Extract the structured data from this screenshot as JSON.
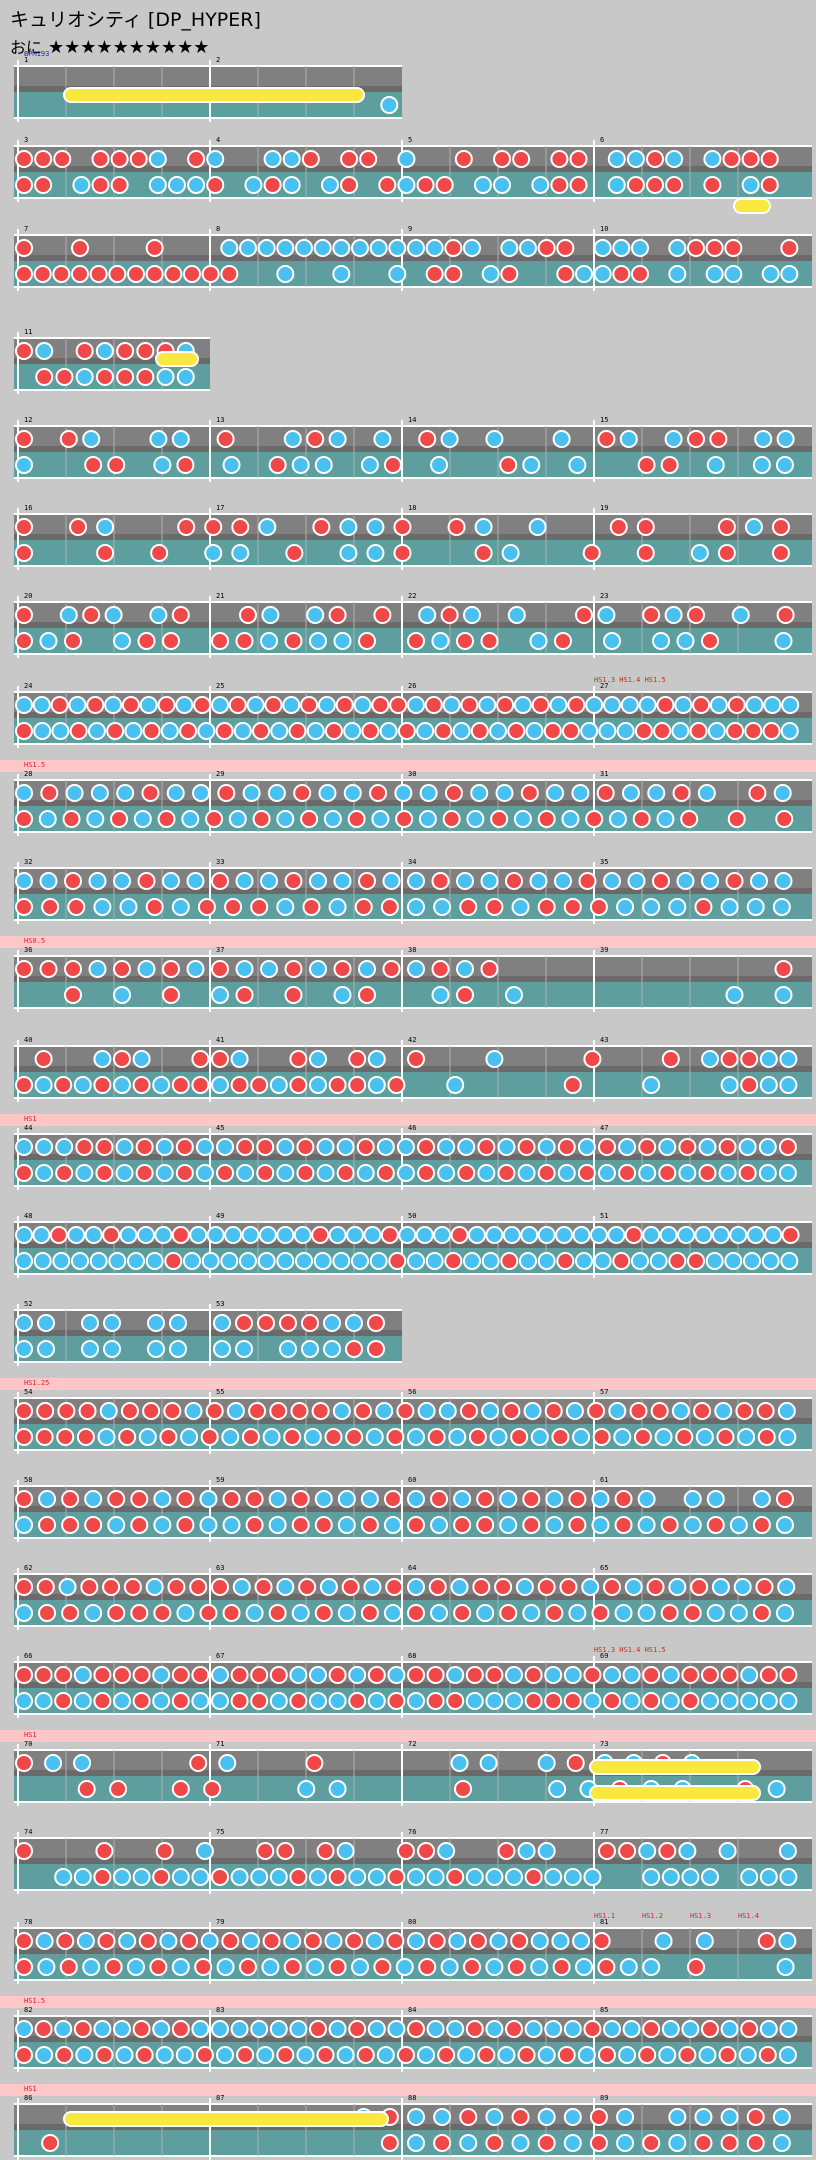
{
  "song": {
    "title": "キュリオシティ [DP_HYPER]",
    "course": "おに",
    "stars": "★★★★★★★★★★"
  },
  "colors": {
    "don": "#f04848",
    "ka": "#48c0f0",
    "roll": "#f8e840",
    "lane_top": "#808080",
    "lane_bottom": "#5e9e9e",
    "hs_band": "#ffc8c8"
  },
  "rows": [
    {
      "label_top": "",
      "measures": [
        1,
        2
      ],
      "events": [
        "BPM193"
      ],
      "p1": "...........................................",
      "p2": "..........................................k"
    },
    {
      "label_top": "",
      "measures": [
        3,
        4,
        5,
        6
      ],
      "p1": "ddd.dddk.dk..kkd.dd.k..d.dd.dd.kkdk.kddd.",
      "p2": "dd.kdd.kkkd.kdk.kd.dkdd.kk.kdd.kddd.d.kd."
    },
    {
      "label_top": "",
      "measures": [
        7,
        8,
        9,
        10
      ],
      "p1": "d..d...d...kkkkkkkkkkkkdk.kkdd.kkk.kddd..d",
      "p2": "dddddddddddd..k..k..k.dd.kd..dkkdd.k.kk.kk"
    },
    {
      "label_top": "",
      "measures": [
        11
      ],
      "p1": "dk.dkdddk",
      "p2": ".ddkdddkk"
    },
    {
      "label_top": "",
      "measures": [
        12,
        13,
        14,
        15
      ],
      "p1": "d.dk..kk.d..kdk.k.dk.k..k.dk.kdd.kk",
      "p2": "k..dd.kd.k.dkk.kd.k..dk.k..dd.k.kk"
    },
    {
      "label_top": "",
      "measures": [
        16,
        17,
        18,
        19
      ],
      "p1": "d.dk..dddk.dkkd.dk.k..dd..dkd",
      "p2": "d..d.d.kk.d.kkd..dk..d.d.kd.d"
    },
    {
      "label_top": "",
      "measures": [
        20,
        21,
        22,
        23
      ],
      "p1": "d.kdk.kd..dk.kd.d.kdk.k..dk.dkd.k.d",
      "p2": "dkd.kdd.ddkdkkd.dkdd.kd.k.kkd..k"
    },
    {
      "label_top": "",
      "measures": [
        24,
        25,
        26,
        27
      ],
      "events": [
        "HS1.3 HS1.4 HS1.5"
      ],
      "p1": "kkdkdkdkdkdkdkdkdkdkddkdkdkdkdkdkkkkdkdkdkkk",
      "p2": "dkkdkdkdkdkdkdkdkdkdkdkdkdkdkddkkkddkdkdddk"
    },
    {
      "label_top": "HS1.5",
      "measures": [
        28,
        29,
        30,
        31
      ],
      "p1": "kdkkkdkkdkkdkkdkkdkkdkkdkkdk.dk",
      "p2": "dkdkdkdkdkdkdkdkdkdkdkdkdkdkd.d.d"
    },
    {
      "label_top": "",
      "measures": [
        32,
        33,
        34,
        35
      ],
      "p1": "kkdkkdkkdkkdkkdkkdkkdkkdkkdkkdkk",
      "p2": "dddkkdkdddkdkddkkddkdddkkkdkkk"
    },
    {
      "label_top": "HS0.5",
      "measures": [
        36,
        37,
        38,
        39
      ],
      "p1": "dddkdkdkdkkdkdkdkdkd...........d",
      "p2": "..d.k.d.kd.d.kd..kd.k........k.k"
    },
    {
      "label_top": "",
      "measures": [
        40,
        41,
        42,
        43
      ],
      "p1": ".d..kdk..ddk..dk.dk.d...k....d...d.kddkk",
      "p2": "dkdkdkdkddkddkdkddkd..k.....d...k...kdkk"
    },
    {
      "label_top": "HS1",
      "measures": [
        44,
        45,
        46,
        47
      ],
      "p1": "kkkddkdkdkkddkdkkdkkdkkdkdkdkdkdkdkdkkd",
      "p2": "dkdkdkdkdkdkdkdkdkdkdkdkdkdkdkdkdkdkdkk"
    },
    {
      "label_top": "",
      "measures": [
        48,
        49,
        50,
        51
      ],
      "p1": "kkdkkdkkkdkkkkkkkdkkkdkkkdkkkkkkkkkdkkkkkkkkd",
      "p2": "kkkkkkkkdkkkkkkkkkkkdkkdkkdkkdkkdkkddkkkkk"
    },
    {
      "label_top": "",
      "measures": [
        52,
        53
      ],
      "p1": "kk.kk.kk.kddddkkd",
      "p2": "kk.kk.kk.kk.kkkdd"
    },
    {
      "label_top": "HS1.25",
      "measures": [
        54,
        55,
        56,
        57
      ],
      "p1": "ddddkdddkdkddddkdkdkkdkdkdkdkddkdkddk",
      "p2": "ddddkdkdkdkdkdkddkdkdkdkdkdkdkdkdkdkdk"
    },
    {
      "label_top": "",
      "measures": [
        58,
        59,
        60,
        61
      ],
      "p1": "dkdkddkdkddkdkkkdkdkdkdkdkdk.kk.kd",
      "p2": "kdddkdkdkkdkddkdkdkddkdkdkdkdkdkdk"
    },
    {
      "label_top": "",
      "measures": [
        62,
        63,
        64,
        65
      ],
      "p1": "ddkdddkdddkdkdkdkdkdkddkddkdkdkdkkdk",
      "p2": "kddkdddkddkdkdkdkdkdkdkdkdkkddkkdk"
    },
    {
      "label_top": "",
      "measures": [
        66,
        67,
        68,
        69
      ],
      "events": [
        "HS1.3 HS1.4 HS1.5"
      ],
      "p1": "dddkdddkddkdddkkdkdkddkddkdkkdkkdkdddkdd",
      "p2": "kkdkdkdkdkkddkdkkdkdkddkkkdddkdkdkdkkkkk"
    },
    {
      "label_top": "HS1",
      "measures": [
        70,
        71,
        72,
        73
      ],
      "p1": "dkk...dk..d....kk.kdkkdk...",
      "p2": "..dd.dd..kk...d..kkdkk.dk"
    },
    {
      "label_top": "",
      "measures": [
        74,
        75,
        76,
        77
      ],
      "p1": "d...d..d.k..dd.dk..ddk..dkk..ddkdk.k..k",
      "p2": "..kkdkkdkkdkkkdkdkkdkkdkkkdkkk..kkkk.kkk"
    },
    {
      "label_top": "",
      "measures": [
        78,
        79,
        80,
        81
      ],
      "events": [
        "HS1.1",
        "HS1.2",
        "HS1.3",
        "HS1.4"
      ],
      "p1": "dkdkdkdkdkdkdkdkdkdkdkdkdkkkd..k.k..dk",
      "p2": "dkdkdkdkdkdkdkdkdkdkdkdkdkdkk.d...k"
    },
    {
      "label_top": "HS1.5",
      "measures": [
        82,
        83,
        84,
        85
      ],
      "p1": "kdkdkkdkdkkkkkkdkdkkdkkdkdkkkdkkdkkdkdkk",
      "p2": "dkdkdkdkkdkdkdkdkdkdkdkdkdkdkdkdkdkdkdk"
    },
    {
      "label_top": "HS1",
      "measures": [
        86,
        87,
        88,
        89
      ],
      "p1": ".............kdkkdkdkkdk.kkkdk",
      "p2": ".d............dkdkdkdkdkdkdddk"
    }
  ]
}
